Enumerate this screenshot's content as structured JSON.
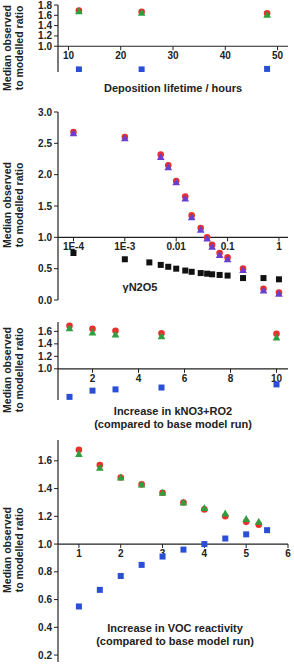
{
  "chart_data": [
    {
      "type": "scatter",
      "ylabel": [
        "Median observed",
        "to modelled ratio"
      ],
      "xlabel": [
        "Deposition lifetime / hours"
      ],
      "xlim": [
        8,
        52
      ],
      "xticks": [
        10,
        20,
        30,
        40,
        50
      ],
      "ylim": [
        0.5,
        1.8
      ],
      "yticks": [
        {
          "value": 1.0,
          "label": "1.0"
        },
        {
          "value": 1.2,
          "label": "1.2"
        },
        {
          "value": 1.4,
          "label": "1.4"
        },
        {
          "value": 1.6,
          "label": "1.6"
        },
        {
          "value": 1.8,
          "label": "1.8"
        }
      ],
      "grid": false,
      "series": [
        {
          "color": "#e8312a",
          "marker": "circle",
          "x": [
            12,
            24,
            48
          ],
          "values": [
            1.69,
            1.67,
            1.64
          ]
        },
        {
          "color": "#2e9e3e",
          "marker": "triangle",
          "x": [
            12,
            24,
            48
          ],
          "values": [
            1.68,
            1.65,
            1.61
          ]
        },
        {
          "color": "#2a4fd6",
          "marker": "square",
          "x": [
            12,
            24,
            48
          ],
          "values": [
            0.55,
            0.55,
            0.56
          ]
        }
      ]
    },
    {
      "type": "scatter",
      "ylabel": [
        "Median observed",
        "to modelled ratio"
      ],
      "xlabel": [
        "γN2O5"
      ],
      "log": "x",
      "xlim": [
        5e-05,
        1.5
      ],
      "xticks": [
        {
          "value": 0.0001,
          "label": "1E-4"
        },
        {
          "value": 0.001,
          "label": "1E-3"
        },
        0.01,
        0.1,
        1
      ],
      "ylim": [
        0,
        3.0
      ],
      "yticks": [
        {
          "value": 0,
          "label": "0.0"
        },
        0.5,
        {
          "value": 1.0,
          "label": "1.0"
        },
        1.5,
        {
          "value": 2.0,
          "label": "2.0"
        },
        2.5,
        {
          "value": 3.0,
          "label": "3.0"
        }
      ],
      "grid": false,
      "series": [
        {
          "color": "#e8312a",
          "marker": "circle",
          "x": [
            0.0001,
            0.001,
            0.005,
            0.007,
            0.01,
            0.015,
            0.02,
            0.03,
            0.04,
            0.05,
            0.07,
            0.1,
            0.2,
            0.5,
            1
          ],
          "values": [
            2.68,
            2.6,
            2.32,
            2.15,
            1.9,
            1.65,
            1.35,
            1.15,
            1.0,
            0.88,
            0.75,
            0.68,
            0.5,
            0.18,
            0.12
          ]
        },
        {
          "color": "#6a3fd0",
          "marker": "triangle",
          "x": [
            0.0001,
            0.001,
            0.005,
            0.007,
            0.01,
            0.015,
            0.02,
            0.03,
            0.04,
            0.05,
            0.07,
            0.1,
            0.2,
            0.5,
            1
          ],
          "values": [
            2.66,
            2.58,
            2.28,
            2.12,
            1.88,
            1.62,
            1.32,
            1.12,
            0.98,
            0.85,
            0.72,
            0.65,
            0.48,
            0.15,
            0.1
          ]
        },
        {
          "color": "#111111",
          "marker": "square",
          "x": [
            0.0001,
            0.001,
            0.003,
            0.005,
            0.007,
            0.01,
            0.015,
            0.02,
            0.03,
            0.04,
            0.05,
            0.07,
            0.1,
            0.2,
            0.5,
            1
          ],
          "values": [
            0.75,
            0.65,
            0.6,
            0.56,
            0.53,
            0.5,
            0.47,
            0.45,
            0.43,
            0.42,
            0.41,
            0.4,
            0.39,
            0.35,
            0.35,
            0.33
          ]
        }
      ]
    },
    {
      "type": "scatter",
      "ylabel": [
        "Median observed",
        "to modelled ratio"
      ],
      "xlabel": [
        "Increase in kNO3+RO2",
        "(compared to base model run)"
      ],
      "xlim": [
        0.5,
        10.5
      ],
      "xticks": [
        2,
        4,
        6,
        8,
        10
      ],
      "ylim": [
        0.5,
        1.75
      ],
      "yticks": [
        {
          "value": 1.0,
          "label": "1.0"
        },
        {
          "value": 1.2,
          "label": "1.2"
        },
        {
          "value": 1.4,
          "label": "1.4"
        },
        {
          "value": 1.6,
          "label": "1.6"
        }
      ],
      "grid": false,
      "series": [
        {
          "color": "#e8312a",
          "marker": "circle",
          "x": [
            1,
            2,
            3,
            5,
            10
          ],
          "values": [
            1.69,
            1.64,
            1.61,
            1.57,
            1.56
          ]
        },
        {
          "color": "#2e9e3e",
          "marker": "triangle",
          "x": [
            1,
            2,
            3,
            5,
            10
          ],
          "values": [
            1.65,
            1.58,
            1.55,
            1.52,
            1.5
          ]
        },
        {
          "color": "#2a4fd6",
          "marker": "square",
          "x": [
            1,
            2,
            3,
            5,
            10
          ],
          "values": [
            0.55,
            0.65,
            0.67,
            0.7,
            0.75
          ]
        }
      ]
    },
    {
      "type": "scatter",
      "ylabel": [
        "Median observed",
        "to modelled ratio"
      ],
      "xlabel": [
        "Increase in VOC reactivity",
        "(compared to base model run)"
      ],
      "xlim": [
        0.5,
        6
      ],
      "xticks": [
        1,
        2,
        3,
        4,
        5,
        6
      ],
      "ylim": [
        0.15,
        1.75
      ],
      "yticks": [
        0.2,
        0.4,
        0.6,
        0.8,
        {
          "value": 1.0,
          "label": "1.0"
        },
        1.2,
        1.4,
        1.6
      ],
      "grid": false,
      "series": [
        {
          "color": "#e8312a",
          "marker": "circle",
          "x": [
            1,
            1.5,
            2,
            2.5,
            3,
            3.5,
            4,
            4.5,
            5,
            5.3
          ],
          "values": [
            1.68,
            1.57,
            1.48,
            1.43,
            1.37,
            1.3,
            1.25,
            1.2,
            1.16,
            1.14
          ]
        },
        {
          "color": "#2e9e3e",
          "marker": "triangle",
          "x": [
            1,
            1.5,
            2,
            2.5,
            3,
            3.5,
            4,
            4.5,
            5,
            5.3
          ],
          "values": [
            1.65,
            1.55,
            1.48,
            1.43,
            1.37,
            1.3,
            1.26,
            1.22,
            1.18,
            1.16
          ]
        },
        {
          "color": "#2a4fd6",
          "marker": "square",
          "x": [
            1,
            1.5,
            2,
            2.5,
            3,
            3.5,
            4,
            4.5,
            5,
            5.5
          ],
          "values": [
            0.55,
            0.67,
            0.77,
            0.85,
            0.91,
            0.96,
            1.0,
            1.04,
            1.07,
            1.1
          ]
        }
      ]
    }
  ]
}
